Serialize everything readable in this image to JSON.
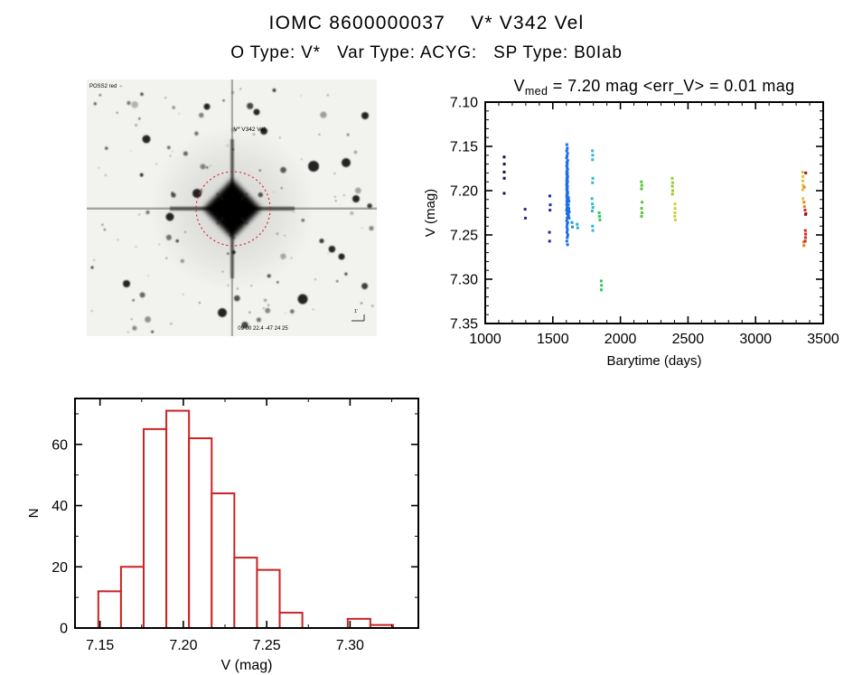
{
  "page": {
    "title": "IOMC 8600000037    V* V342 Vel",
    "subtitle": "O Type: V*   Var Type: ACYG:   SP Type: B0Iab"
  },
  "finder_image": {
    "survey_label": "POSS2 red",
    "target_label": "V* V342 Vel",
    "coords_label": "09 00 22.4  -47 24 25",
    "scale_label": "1'"
  },
  "chart_data": [
    {
      "type": "scatter",
      "name": "lightcurve",
      "title": {
        "prefix": "V",
        "sub": "med",
        "rest": " = 7.20 mag <err_V> = 0.01 mag"
      },
      "xlabel": "Barytime (days)",
      "ylabel": "V (mag)",
      "xlim": [
        1000,
        3500
      ],
      "ylim_top": 7.1,
      "ylim_bottom": 7.35,
      "xticks": [
        1000,
        1500,
        2000,
        2500,
        3000,
        3500
      ],
      "xtick_labels": [
        "1000",
        "1500",
        "2000",
        "2500",
        "3000",
        "3500"
      ],
      "xminor_step": 100,
      "yticks": [
        7.1,
        7.15,
        7.2,
        7.25,
        7.3,
        7.35
      ],
      "ytick_labels": [
        "7.10",
        "7.15",
        "7.20",
        "7.25",
        "7.30",
        "7.35"
      ],
      "yminor_step": 0.01,
      "point_size": 3,
      "series": [
        {
          "name": "epoch-1140",
          "color": "#1c0d3f",
          "points": [
            [
              1140,
              7.162
            ],
            [
              1141,
              7.17
            ],
            [
              1140,
              7.179
            ],
            [
              1141,
              7.186
            ],
            [
              1140,
              7.203
            ]
          ]
        },
        {
          "name": "epoch-1295",
          "color": "#3a1a8c",
          "points": [
            [
              1295,
              7.221
            ],
            [
              1297,
              7.231
            ]
          ]
        },
        {
          "name": "epoch-1480",
          "color": "#232b99",
          "points": [
            [
              1478,
              7.206
            ],
            [
              1481,
              7.216
            ],
            [
              1479,
              7.222
            ],
            [
              1475,
              7.247
            ],
            [
              1476,
              7.257
            ]
          ]
        },
        {
          "name": "epoch-1605",
          "color": "#1b6ee8",
          "points": [
            [
              1604,
              7.148
            ],
            [
              1607,
              7.152
            ],
            [
              1603,
              7.155
            ],
            [
              1609,
              7.158
            ],
            [
              1605,
              7.161
            ],
            [
              1602,
              7.163
            ],
            [
              1610,
              7.166
            ],
            [
              1604,
              7.168
            ],
            [
              1607,
              7.17
            ],
            [
              1603,
              7.172
            ],
            [
              1606,
              7.174
            ],
            [
              1609,
              7.176
            ],
            [
              1604,
              7.178
            ],
            [
              1608,
              7.18
            ],
            [
              1603,
              7.181
            ],
            [
              1606,
              7.183
            ],
            [
              1610,
              7.184
            ],
            [
              1604,
              7.186
            ],
            [
              1607,
              7.187
            ],
            [
              1603,
              7.189
            ],
            [
              1609,
              7.19
            ],
            [
              1605,
              7.192
            ],
            [
              1602,
              7.193
            ],
            [
              1608,
              7.195
            ],
            [
              1604,
              7.196
            ],
            [
              1607,
              7.198
            ],
            [
              1603,
              7.199
            ],
            [
              1606,
              7.201
            ],
            [
              1610,
              7.202
            ],
            [
              1604,
              7.204
            ],
            [
              1608,
              7.205
            ],
            [
              1603,
              7.207
            ],
            [
              1606,
              7.209
            ],
            [
              1609,
              7.21
            ],
            [
              1604,
              7.212
            ],
            [
              1607,
              7.214
            ],
            [
              1603,
              7.216
            ],
            [
              1608,
              7.218
            ],
            [
              1605,
              7.22
            ],
            [
              1602,
              7.222
            ],
            [
              1609,
              7.224
            ],
            [
              1605,
              7.226
            ],
            [
              1612,
              7.228
            ],
            [
              1606,
              7.231
            ],
            [
              1603,
              7.234
            ],
            [
              1610,
              7.236
            ],
            [
              1606,
              7.238
            ],
            [
              1604,
              7.241
            ],
            [
              1608,
              7.244
            ],
            [
              1605,
              7.247
            ],
            [
              1611,
              7.25
            ],
            [
              1607,
              7.253
            ],
            [
              1604,
              7.257
            ],
            [
              1609,
              7.261
            ],
            [
              1616,
              7.208
            ],
            [
              1619,
              7.212
            ],
            [
              1615,
              7.216
            ],
            [
              1618,
              7.22
            ],
            [
              1621,
              7.224
            ],
            [
              1616,
              7.228
            ],
            [
              1620,
              7.231
            ],
            [
              1614,
              7.21
            ],
            [
              1617,
              7.222
            ],
            [
              1613,
              7.226
            ]
          ]
        },
        {
          "name": "epoch-1643",
          "color": "#2196dc",
          "points": [
            [
              1642,
              7.236
            ],
            [
              1645,
              7.241
            ]
          ]
        },
        {
          "name": "epoch-1680",
          "color": "#2fb0c4",
          "points": [
            [
              1680,
              7.238
            ],
            [
              1684,
              7.242
            ]
          ]
        },
        {
          "name": "epoch-1795",
          "color": "#35b8cc",
          "points": [
            [
              1793,
              7.155
            ],
            [
              1795,
              7.16
            ],
            [
              1794,
              7.165
            ],
            [
              1796,
              7.186
            ],
            [
              1794,
              7.191
            ],
            [
              1790,
              7.209
            ],
            [
              1793,
              7.215
            ],
            [
              1797,
              7.219
            ],
            [
              1792,
              7.223
            ],
            [
              1794,
              7.24
            ],
            [
              1796,
              7.245
            ]
          ]
        },
        {
          "name": "epoch-1845",
          "color": "#2ec960",
          "points": [
            [
              1843,
              7.225
            ],
            [
              1846,
              7.229
            ],
            [
              1848,
              7.233
            ],
            [
              1858,
              7.302
            ],
            [
              1860,
              7.307
            ],
            [
              1859,
              7.312
            ]
          ]
        },
        {
          "name": "epoch-2160",
          "color": "#57c43a",
          "points": [
            [
              2155,
              7.19
            ],
            [
              2158,
              7.194
            ],
            [
              2156,
              7.198
            ],
            [
              2160,
              7.213
            ],
            [
              2157,
              7.22
            ],
            [
              2159,
              7.225
            ],
            [
              2156,
              7.229
            ]
          ]
        },
        {
          "name": "epoch-2385",
          "color": "#96cc2e",
          "points": [
            [
              2383,
              7.186
            ],
            [
              2386,
              7.191
            ],
            [
              2384,
              7.195
            ],
            [
              2387,
              7.2
            ],
            [
              2385,
              7.204
            ]
          ]
        },
        {
          "name": "epoch-2405",
          "color": "#cfd033",
          "points": [
            [
              2403,
              7.215
            ],
            [
              2405,
              7.22
            ],
            [
              2404,
              7.225
            ],
            [
              2402,
              7.229
            ],
            [
              2406,
              7.233
            ]
          ]
        },
        {
          "name": "epoch-3350",
          "color": "#e5c233",
          "points": [
            [
              3348,
              7.179
            ],
            [
              3350,
              7.184
            ],
            [
              3349,
              7.189
            ],
            [
              3351,
              7.194
            ],
            [
              3348,
              7.199
            ],
            [
              3350,
              7.209
            ]
          ]
        },
        {
          "name": "epoch-3360",
          "color": "#e0831f",
          "points": [
            [
              3360,
              7.196
            ],
            [
              3358,
              7.213
            ],
            [
              3361,
              7.218
            ],
            [
              3356,
              7.258
            ],
            [
              3357,
              7.262
            ]
          ]
        },
        {
          "name": "epoch-3368",
          "color": "#cc2a1c",
          "points": [
            [
              3366,
              7.222
            ],
            [
              3369,
              7.227
            ],
            [
              3368,
              7.245
            ],
            [
              3370,
              7.249
            ],
            [
              3369,
              7.253
            ],
            [
              3367,
              7.257
            ]
          ]
        },
        {
          "name": "epoch-3372",
          "color": "#9e1612",
          "points": [
            [
              3371,
              7.18
            ],
            [
              3372,
              7.226
            ]
          ]
        }
      ]
    },
    {
      "type": "histogram",
      "name": "v-distribution",
      "color": "#cc2222",
      "xlabel": "V (mag)",
      "ylabel": "N",
      "xlim": [
        7.135,
        7.341
      ],
      "ylim": [
        0,
        75
      ],
      "bin_start": 7.149,
      "bin_width": 0.0136,
      "counts": [
        12,
        20,
        65,
        71,
        62,
        44,
        23,
        19,
        5,
        0,
        0,
        3,
        1
      ],
      "xticks": [
        7.15,
        7.2,
        7.25,
        7.3
      ],
      "xtick_labels": [
        "7.15",
        "7.20",
        "7.25",
        "7.30"
      ],
      "xminor_step": 0.025,
      "yticks": [
        0,
        20,
        40,
        60
      ],
      "ytick_labels": [
        "0",
        "20",
        "40",
        "60"
      ],
      "yminor_step": 10
    }
  ]
}
